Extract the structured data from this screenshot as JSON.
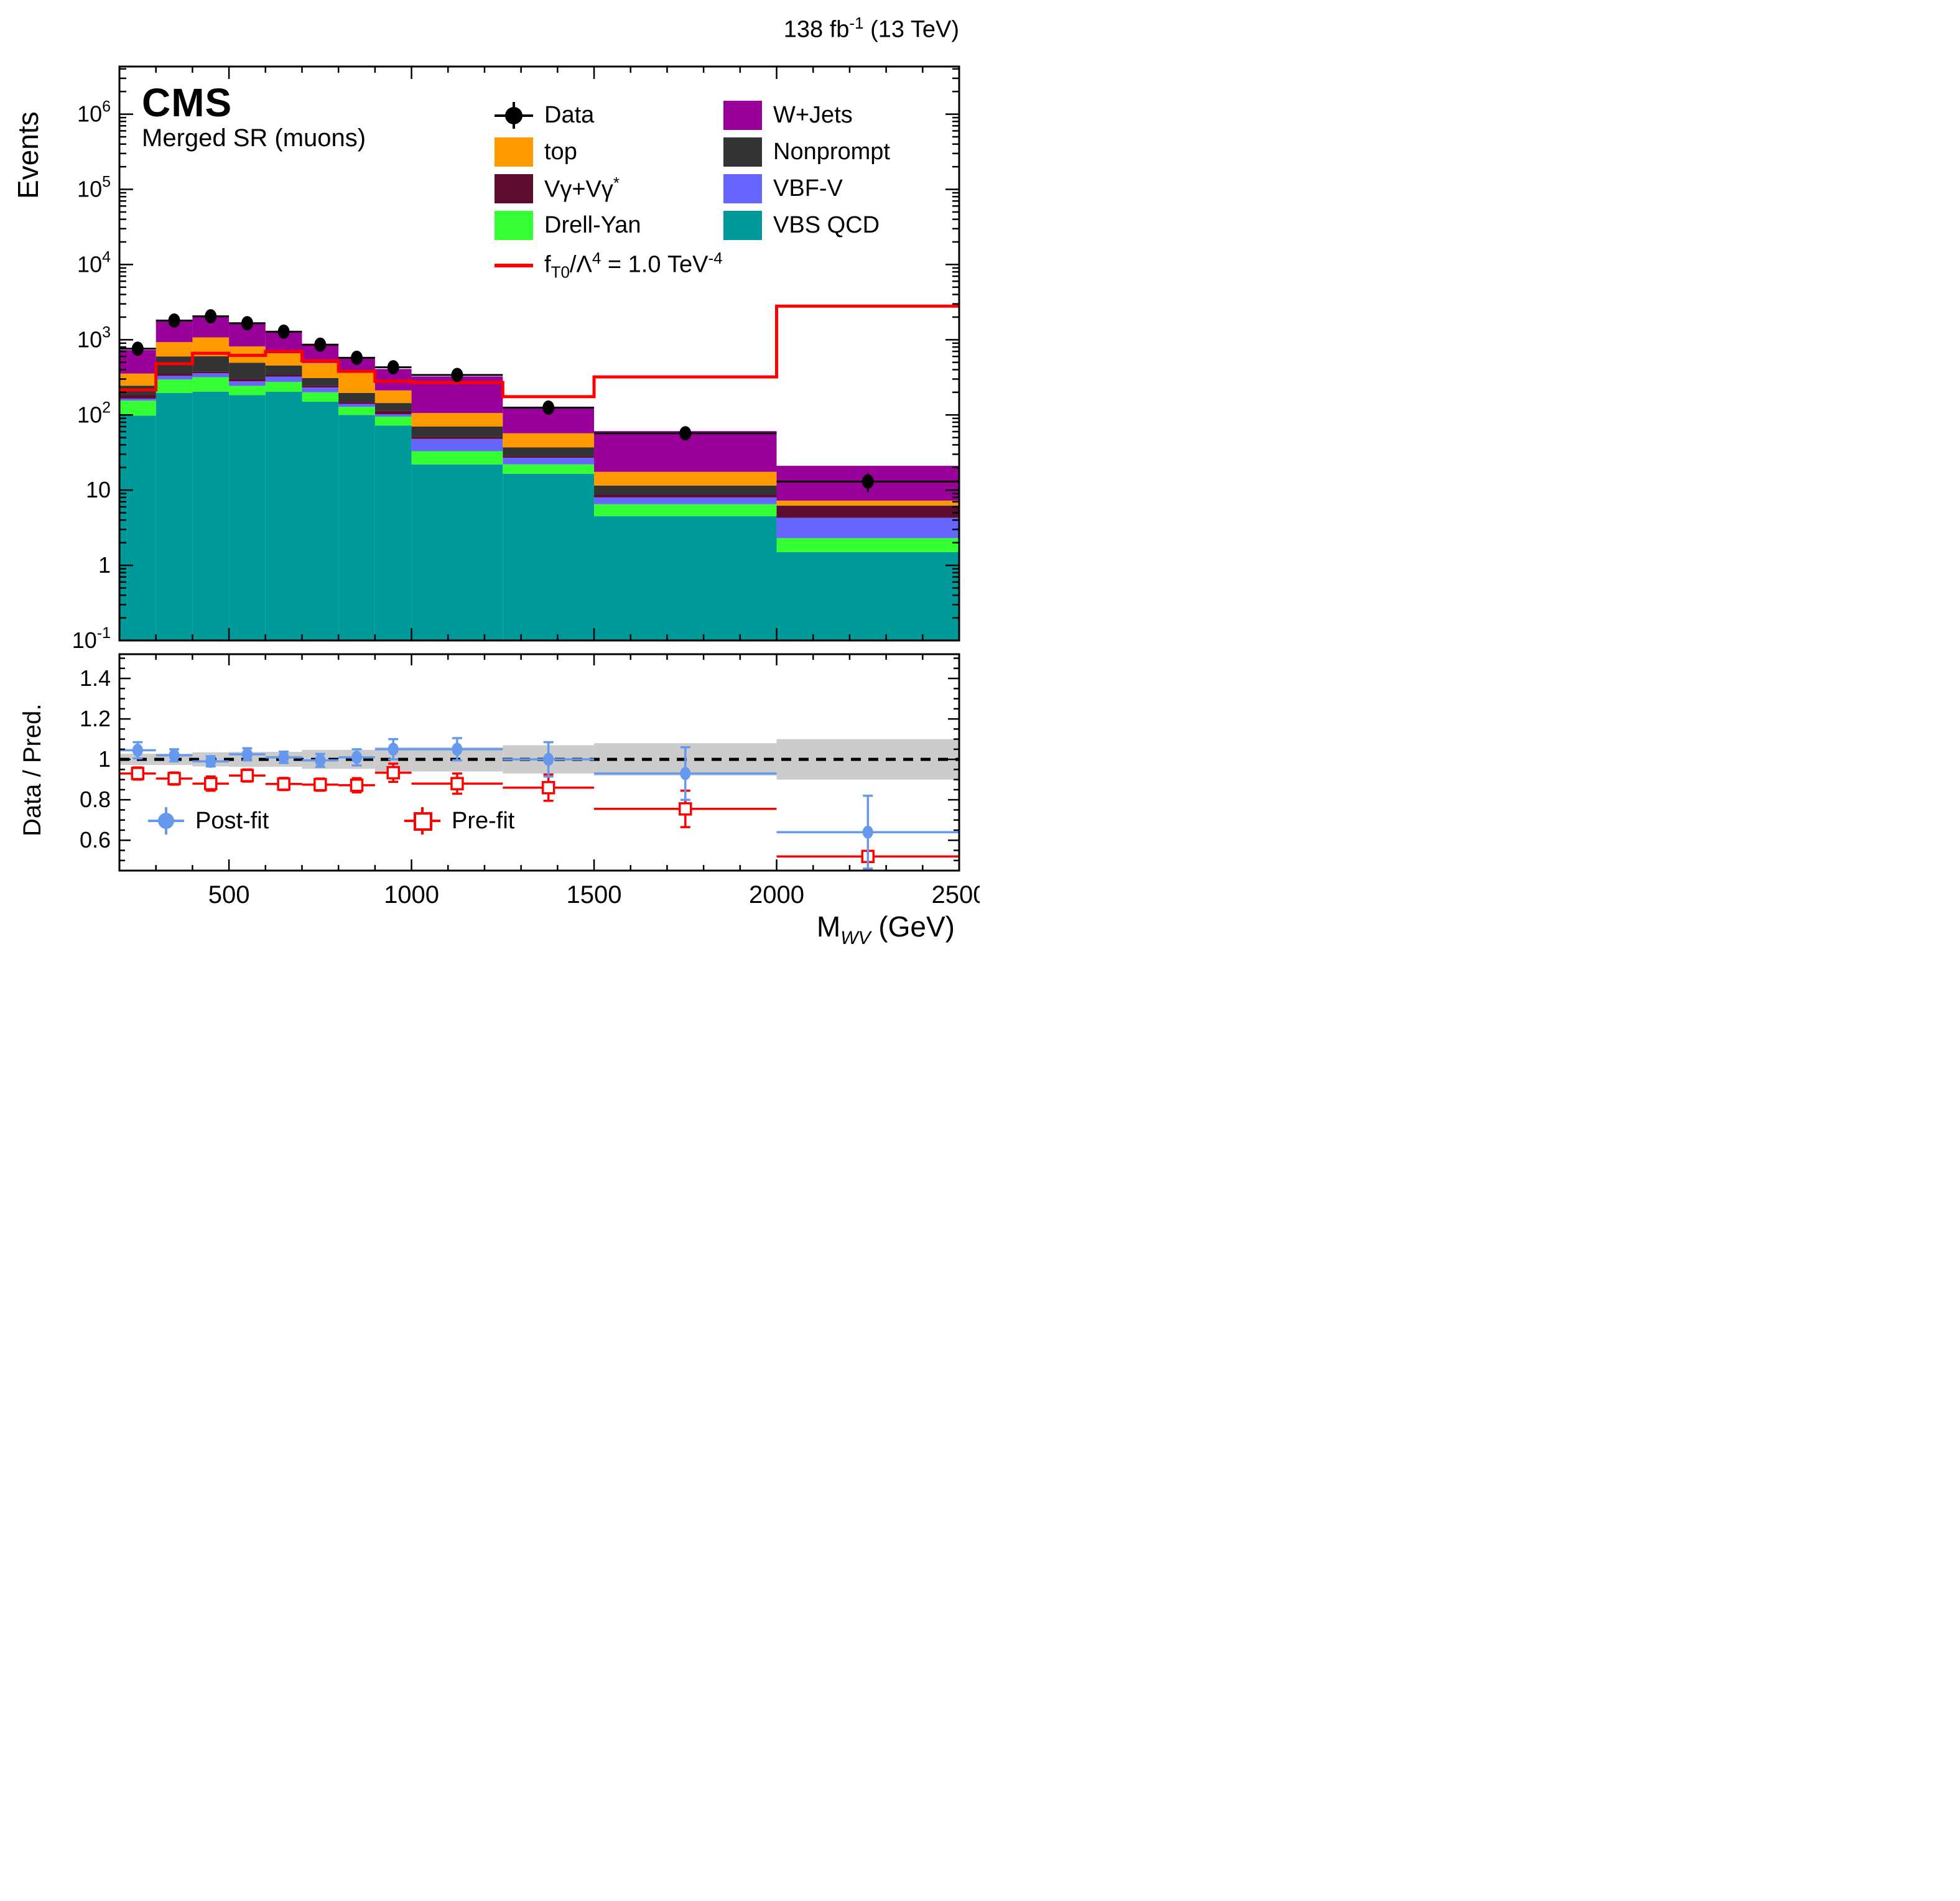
{
  "header": {
    "lumi_prefix": "138 fb",
    "lumi_sup": "-1",
    "lumi_suffix": " (13 TeV)"
  },
  "titles": {
    "experiment": "CMS",
    "region": "Merged SR (muons)",
    "y_main": "Events",
    "y_ratio": "Data / Pred.",
    "x_base": "M",
    "x_sub": "WV",
    "x_suffix": " (GeV)"
  },
  "legend": {
    "col1": [
      {
        "label": "Data",
        "type": "data-marker"
      },
      {
        "label": "top",
        "color": "#ff9900"
      },
      {
        "label_main": "Vγ+Vγ",
        "label_sup": "*",
        "color": "#5e0b30"
      },
      {
        "label": "Drell-Yan",
        "color": "#33ff33"
      }
    ],
    "col2": [
      {
        "label": "W+Jets",
        "color": "#990099"
      },
      {
        "label": "Nonprompt",
        "color": "#333333"
      },
      {
        "label": "VBF-V",
        "color": "#6666ff"
      },
      {
        "label": "VBS QCD",
        "color": "#009999"
      }
    ],
    "signal": {
      "p1": "f",
      "sub": "T0",
      "p2": "/Λ",
      "sup1": "4",
      "p3": " = 1.0 TeV",
      "sup2": "-4"
    }
  },
  "ratio_legend": {
    "post": "Post-fit",
    "pre": "Pre-fit"
  },
  "chart_data": {
    "type": "bar",
    "subtype": "stacked-step-histogram-with-ratio",
    "x": {
      "title": "M_WV (GeV)",
      "range": [
        200,
        2500
      ],
      "bin_edges": [
        200,
        300,
        400,
        500,
        600,
        700,
        800,
        900,
        1000,
        1250,
        1500,
        2000,
        2500
      ],
      "major_ticks": [
        500,
        1000,
        1500,
        2000,
        2500
      ],
      "major_tick_labels": [
        "500",
        "1000",
        "1500",
        "2000",
        "2500"
      ],
      "minor_tick_step": 100
    },
    "y_main": {
      "title": "Events",
      "scale": "log",
      "range": [
        0.1,
        4300000
      ],
      "decade_labels": [
        {
          "v": 0.1,
          "base": "10",
          "exp": "-1"
        },
        {
          "v": 1,
          "base": "1",
          "exp": ""
        },
        {
          "v": 10,
          "base": "10",
          "exp": ""
        },
        {
          "v": 100,
          "base": "10",
          "exp": "2"
        },
        {
          "v": 1000,
          "base": "10",
          "exp": "3"
        },
        {
          "v": 10000,
          "base": "10",
          "exp": "4"
        },
        {
          "v": 100000,
          "base": "10",
          "exp": "5"
        },
        {
          "v": 1000000,
          "base": "10",
          "exp": "6"
        }
      ]
    },
    "series": [
      {
        "name": "VBS QCD",
        "color": "#009999",
        "values": [
          98,
          196,
          204,
          183,
          203,
          150,
          100,
          72,
          22,
          16.5,
          4.5,
          1.5
        ]
      },
      {
        "name": "Drell-Yan",
        "color": "#33ff33",
        "values": [
          57,
          100,
          114,
          61,
          72,
          50,
          28,
          23,
          11,
          5.5,
          2,
          0.8
        ]
      },
      {
        "name": "VBF-V",
        "color": "#6666ff",
        "values": [
          10,
          35,
          40,
          36,
          49,
          32,
          12,
          7,
          15,
          5,
          1.5,
          2
        ]
      },
      {
        "name": "Vγ+Vγ*",
        "color": "#5e0b30",
        "values": [
          20,
          22,
          18,
          20,
          16,
          13,
          9,
          11,
          3,
          1.5,
          0.7,
          1.9
        ]
      },
      {
        "name": "Nonprompt",
        "color": "#333333",
        "values": [
          60,
          247,
          229,
          195,
          115,
          65,
          47,
          31,
          19,
          8.5,
          2.8,
          0.05
        ]
      },
      {
        "name": "top",
        "color": "#ff9900",
        "values": [
          110,
          330,
          470,
          320,
          205,
          180,
          169,
          68,
          36,
          20,
          6,
          1
        ]
      },
      {
        "name": "W+Jets",
        "color": "#990099",
        "values": [
          375,
          850,
          985,
          865,
          605,
          385,
          220,
          196,
          219,
          65,
          43.5,
          13.8
        ]
      }
    ],
    "data_points": {
      "name": "Data",
      "color": "#000000",
      "values": [
        760,
        1800,
        2050,
        1660,
        1280,
        860,
        575,
        430,
        340,
        125,
        57,
        13
      ],
      "errors": [
        28,
        42,
        45,
        41,
        36,
        29,
        24,
        21,
        18,
        11,
        8,
        3.6
      ]
    },
    "signal": {
      "name": "f_T0/Lambda^4 = 1.0 TeV^-4",
      "color": "#ff0000",
      "values": [
        215,
        480,
        660,
        620,
        700,
        525,
        380,
        280,
        270,
        175,
        320,
        2800
      ]
    },
    "ratio": {
      "title": "Data / Pred.",
      "range": [
        0.45,
        1.52
      ],
      "major_ticks": [
        0.6,
        0.8,
        1.0,
        1.2,
        1.4
      ],
      "major_tick_labels": [
        "0.6",
        "0.8",
        "1",
        "1.2",
        "1.4"
      ],
      "minor_tick_step": 0.05,
      "band_color": "#cccccc",
      "band_half_width": [
        0.028,
        0.028,
        0.035,
        0.037,
        0.037,
        0.047,
        0.047,
        0.06,
        0.06,
        0.07,
        0.08,
        0.1
      ],
      "post_fit": {
        "label": "Post-fit",
        "color": "#6699ee",
        "values": [
          1.045,
          1.02,
          0.99,
          1.025,
          1.01,
          0.995,
          1.01,
          1.05,
          1.05,
          1.0,
          0.93,
          0.64
        ],
        "errors": [
          0.04,
          0.03,
          0.025,
          0.03,
          0.028,
          0.032,
          0.04,
          0.05,
          0.055,
          0.085,
          0.13,
          0.18
        ]
      },
      "pre_fit": {
        "label": "Pre-fit",
        "color": "#ff0000",
        "values": [
          0.93,
          0.905,
          0.88,
          0.92,
          0.878,
          0.875,
          0.872,
          0.934,
          0.88,
          0.86,
          0.755,
          0.52
        ],
        "errors": [
          0.03,
          0.03,
          0.035,
          0.03,
          0.03,
          0.03,
          0.035,
          0.045,
          0.05,
          0.065,
          0.09,
          0.12
        ]
      }
    }
  }
}
